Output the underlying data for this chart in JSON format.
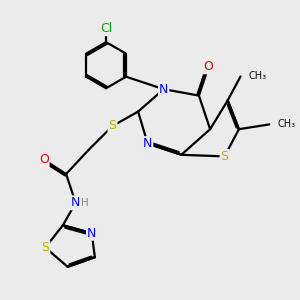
{
  "bg_color": "#ebebeb",
  "atom_colors": {
    "C": "#000000",
    "N": "#0000ee",
    "O": "#ee0000",
    "S": "#ccaa00",
    "Cl": "#00aa00",
    "H": "#888888"
  },
  "bond_color": "#000000",
  "line_width": 1.6,
  "figsize": [
    3.0,
    3.0
  ],
  "dpi": 100,
  "font_size": 9.0
}
